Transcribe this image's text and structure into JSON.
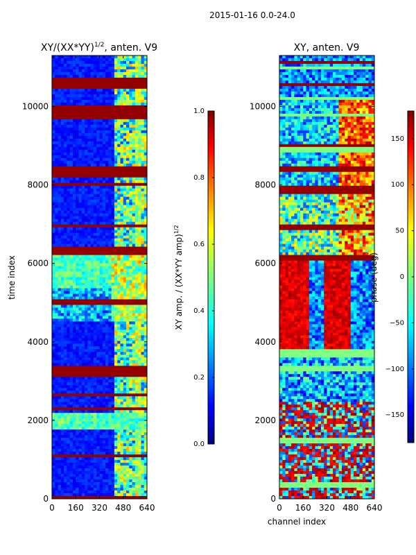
{
  "figure": {
    "suptitle": "2015-01-16 0.0-24.0"
  },
  "chart_data": [
    {
      "type": "heatmap",
      "title_main": "XY/(XX*YY)",
      "title_sup": "1/2",
      "title_tail": ", anten. V9",
      "xlabel": "",
      "ylabel": "time index",
      "xlim": [
        0,
        640
      ],
      "ylim": [
        0,
        11300
      ],
      "xticks": [
        0,
        160,
        320,
        480,
        640
      ],
      "yticks": [
        0,
        2000,
        4000,
        6000,
        8000,
        10000
      ],
      "colorbar": {
        "label_main": "XY amp. / (XX*YY amp)",
        "label_sup": "1/2",
        "range": [
          0.0,
          1.0
        ],
        "ticks": [
          "0.0",
          "0.2",
          "0.4",
          "0.6",
          "0.8",
          "1.0"
        ],
        "tick_values": [
          0.0,
          0.2,
          0.4,
          0.6,
          0.8,
          1.0
        ]
      }
    },
    {
      "type": "heatmap",
      "title_main": "XY, anten. V9",
      "xlabel": "channel index",
      "ylabel": "",
      "xlim": [
        0,
        640
      ],
      "ylim": [
        0,
        11300
      ],
      "xticks": [
        0,
        160,
        320,
        480,
        640
      ],
      "yticks": [
        0,
        2000,
        4000,
        6000,
        8000,
        10000
      ],
      "colorbar": {
        "label_main": "phase (deg)",
        "range": [
          -180,
          180
        ],
        "ticks": [
          "−150",
          "−100",
          "−50",
          "0",
          "50",
          "100",
          "150"
        ],
        "tick_values": [
          -150,
          -100,
          -50,
          0,
          50,
          100,
          150
        ]
      }
    }
  ],
  "colors": {
    "jet_dark_blue": "#00007f",
    "jet_blue": "#0000ff",
    "jet_cyan": "#00ffff",
    "jet_green": "#7fff7f",
    "jet_yellow": "#ffff00",
    "jet_red": "#ff0000",
    "jet_dark_red": "#7f0000"
  }
}
